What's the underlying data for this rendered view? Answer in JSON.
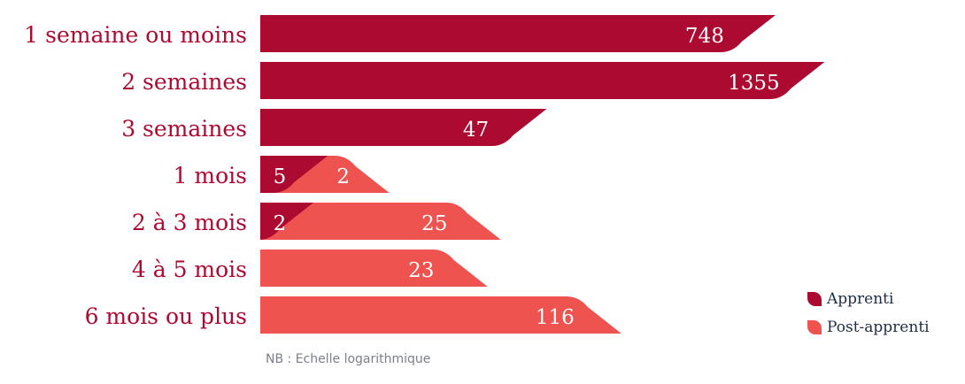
{
  "chart_data": {
    "type": "bar",
    "orientation": "horizontal",
    "stacked": true,
    "scale": "log",
    "categories": [
      "1 semaine ou moins",
      "2 semaines",
      "3 semaines",
      "1 mois",
      "2 à 3 mois",
      "4 à 5 mois",
      "6 mois ou plus"
    ],
    "series": [
      {
        "name": "Apprenti",
        "color": "#ad0a31",
        "values": [
          748,
          1355,
          47,
          5,
          2,
          null,
          null
        ]
      },
      {
        "name": "Post-apprenti",
        "color": "#ef534f",
        "values": [
          null,
          null,
          null,
          2,
          25,
          23,
          116
        ]
      }
    ],
    "label_color": "#ad0a31",
    "legend": "bottom-right",
    "note": "NB : Echelle logarithmique"
  }
}
